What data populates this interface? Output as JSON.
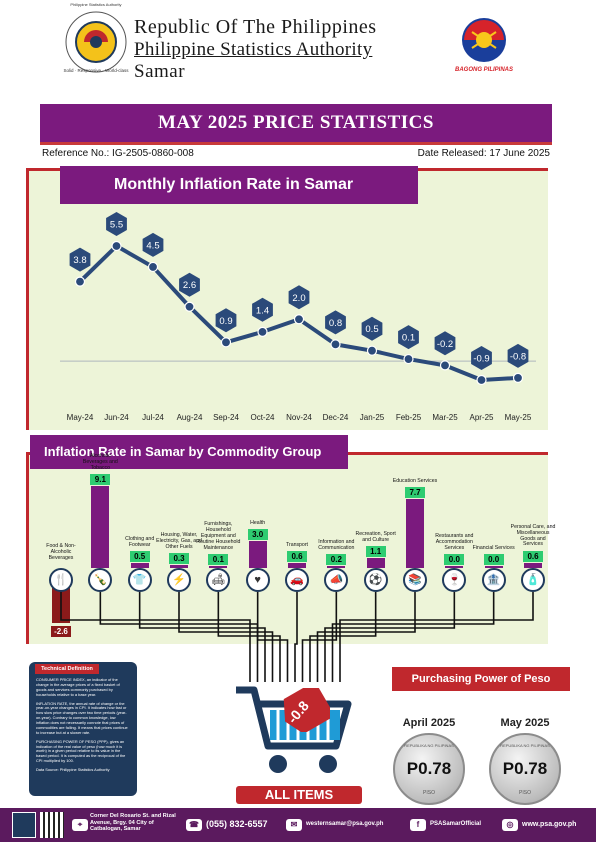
{
  "header": {
    "line1": "Republic Of The Philippines",
    "line2": "Philippine Statistics Authority",
    "line3": "Samar",
    "logo_ring_text": "Philippine Statistics Authority",
    "logo_motto": "Solid · Responsive · World-class",
    "bagong_label": "BAGONG PILIPINAS"
  },
  "title": "MAY 2025 PRICE STATISTICS",
  "reference": "Reference No.: IG-2505-0860-008",
  "date_released": "Date Released: 17 June 2025",
  "monthly_section_title": "Monthly Inflation Rate in Samar",
  "commodity_section_title": "Inflation Rate in Samar by Commodity Group",
  "chart_data": {
    "type": "line",
    "title": "Monthly Inflation Rate in Samar",
    "categories": [
      "May-24",
      "Jun-24",
      "Jul-24",
      "Aug-24",
      "Sep-24",
      "Oct-24",
      "Nov-24",
      "Dec-24",
      "Jan-25",
      "Feb-25",
      "Mar-25",
      "Apr-25",
      "May-25"
    ],
    "values": [
      3.8,
      5.5,
      4.5,
      2.6,
      0.9,
      1.4,
      2.0,
      0.8,
      0.5,
      0.1,
      -0.2,
      -0.9,
      -0.8
    ],
    "labels": [
      "3.8",
      "5.5",
      "4.5",
      "2.6",
      "0.9",
      "1.4",
      "2.0",
      "0.8",
      "0.5",
      "0.1",
      "-0.2",
      "-0.9",
      "-0.8"
    ],
    "colors": {
      "line": "#2b4a7a",
      "marker": "#2b4a7a",
      "label_bg": "#2b4a7a",
      "label_text": "#ffffff"
    }
  },
  "commodity_chart": {
    "type": "bar",
    "title": "Inflation Rate in Samar by Commodity Group",
    "categories": [
      "Food & Non-Alcoholic Beverages",
      "Alcoholic Beverages and Tobacco",
      "Clothing and Footwear",
      "Housing, Water, Electricity, Gas, and Other Fuels",
      "Furnishings, Household Equipment and Routine Household Maintenance",
      "Health",
      "Transport",
      "Information and Communication",
      "Recreation, Sport and Culture",
      "Education Services",
      "Restaurants and Accommodation Services",
      "Financial Services",
      "Personal Care, and Miscellaneous Goods and Services"
    ],
    "values": [
      -2.6,
      9.1,
      0.5,
      0.3,
      0.1,
      3.0,
      0.6,
      0.2,
      1.1,
      7.7,
      0.0,
      0.0,
      0.6
    ],
    "labels": [
      "-2.6",
      "9.1",
      "0.5",
      "0.3",
      "0.1",
      "3.0",
      "0.6",
      "0.2",
      "1.1",
      "7.7",
      "0.0",
      "0.0",
      "0.6"
    ],
    "icons": [
      "food-icon",
      "bottle-icon",
      "clothing-icon",
      "plug-icon",
      "furniture-icon",
      "health-icon",
      "transport-icon",
      "megaphone-icon",
      "recreation-icon",
      "education-icon",
      "restaurant-icon",
      "financial-icon",
      "personal-care-icon"
    ],
    "colors": {
      "bar": "#7b1a7e",
      "negative_bar": "#8b1a1a",
      "value_bg": "#2ecc71"
    }
  },
  "all_items": {
    "label": "ALL ITEMS",
    "value": "-0.8"
  },
  "technical": {
    "heading": "Technical Definition",
    "p1": "CONSUMER PRICE INDEX, an indicator of the change in the average prices of a fixed basket of goods and services commonly purchased by households relative to a base year.",
    "p2": "INFLATION RATE, the annual rate of change or the year-on-year changes in CPI. It indicates how fast or how slow price changes over two time periods (year-on-year). Contrary to common knowledge, low inflation does not necessarily connote that prices of commodities are falling. It means that prices continue to increase but at a slower rate.",
    "p3": "PURCHASING POWER OF PESO (PPP), gives an indication of the real value of peso (how much it is worth) in a given period relative to its value in the based period. It is computed as the reciprocal of the CPI multiplied by 100.",
    "source": "Data Source: Philippine Statistics Authority"
  },
  "ppp": {
    "heading": "Purchasing Power of Peso",
    "items": [
      {
        "month": "April 2025",
        "value": "P0.78"
      },
      {
        "month": "May 2025",
        "value": "P0.78"
      }
    ],
    "coin_top_text": "REPUBLIKA NG PILIPINAS",
    "coin_bottom_text": "PISO"
  },
  "footer": {
    "address": "Corner Del Rosario St. and Rizal Avenue, Brgy. 04 City of Catbalogan, Samar",
    "phone": "(055) 832-6557",
    "email": "westernsamar@psa.gov.ph",
    "facebook": "PSASamarOfficial",
    "website": "www.psa.gov.ph"
  }
}
